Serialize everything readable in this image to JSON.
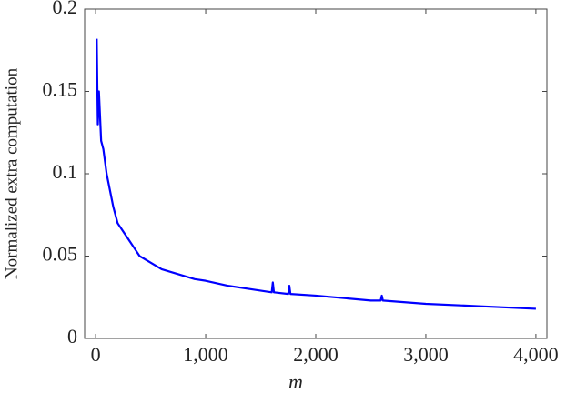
{
  "chart_data": {
    "type": "line",
    "x_label": "m",
    "y_label": "Normalized extra computation",
    "x": [
      10,
      20,
      30,
      50,
      70,
      100,
      130,
      160,
      200,
      250,
      300,
      350,
      400,
      500,
      600,
      700,
      800,
      900,
      1000,
      1200,
      1400,
      1600,
      1610,
      1620,
      1750,
      1760,
      1770,
      2000,
      2500,
      2590,
      2600,
      2610,
      3000,
      3500,
      4000
    ],
    "series": [
      {
        "color": "#0000ff",
        "values": [
          0.182,
          0.13,
          0.15,
          0.12,
          0.115,
          0.1,
          0.09,
          0.08,
          0.07,
          0.065,
          0.06,
          0.055,
          0.05,
          0.046,
          0.042,
          0.04,
          0.038,
          0.036,
          0.035,
          0.032,
          0.03,
          0.028,
          0.034,
          0.028,
          0.027,
          0.032,
          0.027,
          0.026,
          0.023,
          0.023,
          0.026,
          0.023,
          0.021,
          0.0195,
          0.018
        ]
      }
    ],
    "xlim": [
      -100,
      4100
    ],
    "ylim": [
      0,
      0.2
    ],
    "xticks": [
      0,
      {
        "value": 1000,
        "label": "1,000"
      },
      {
        "value": 2000,
        "label": "2,000"
      },
      {
        "value": 3000,
        "label": "3,000"
      },
      {
        "value": 4000,
        "label": "4,000"
      }
    ],
    "yticks": [
      0,
      0.05,
      0.1,
      0.15,
      0.2
    ]
  }
}
